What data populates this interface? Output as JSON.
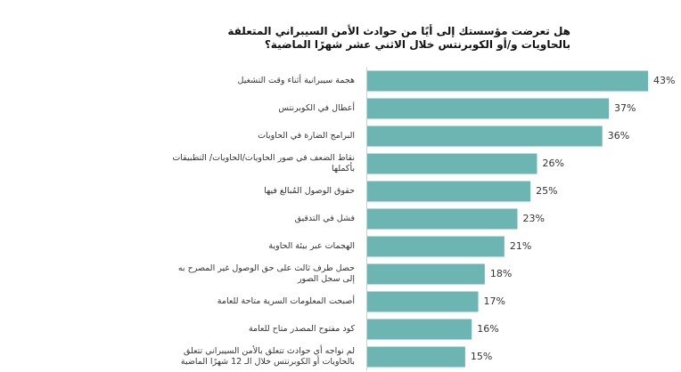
{
  "chart_data": {
    "type": "bar",
    "orientation": "horizontal",
    "title": "هل تعرضت مؤسستك إلى أيًا من حوادث الأمن السيبراني المتعلقة بالحاويات و/أو الكوبرنتس خلال الاثني عشر شهرًا الماضية؟",
    "categories": [
      "هجمة سيبرانية أثناء وقت التشغيل",
      "أعطال في الكوبرنتس",
      "البرامج الضارة في الحاويات",
      "نقاط الضعف في صور الحاويات/الحاويات/ التطبيقات بأكملها",
      "حقوق الوصول المُبالغ فيها",
      "فشل في التدقيق",
      "الهجمات عبر بيئة الحاوية",
      "حصل طرف ثالث على حق الوصول غير المصرح به إلى سجل الصور",
      "أصبحت المعلومات السرية متاحة للعامة",
      "كود مفتوح المصدر متاح للعامة",
      "لم نواجه أي حوادث تتعلق بالأمن السيبراني تتعلق بالحاويات أو الكوبرنتس خلال الـ 12 شهرًا الماضية"
    ],
    "values": [
      43,
      37,
      36,
      26,
      25,
      23,
      21,
      18,
      17,
      16,
      15
    ],
    "value_labels": [
      "43%",
      "37%",
      "36%",
      "26%",
      "25%",
      "23%",
      "21%",
      "18%",
      "17%",
      "16%",
      "15%"
    ],
    "bar_color": "#6db5b3",
    "xlim": [
      0,
      43
    ],
    "grid": false,
    "legend": "none"
  }
}
